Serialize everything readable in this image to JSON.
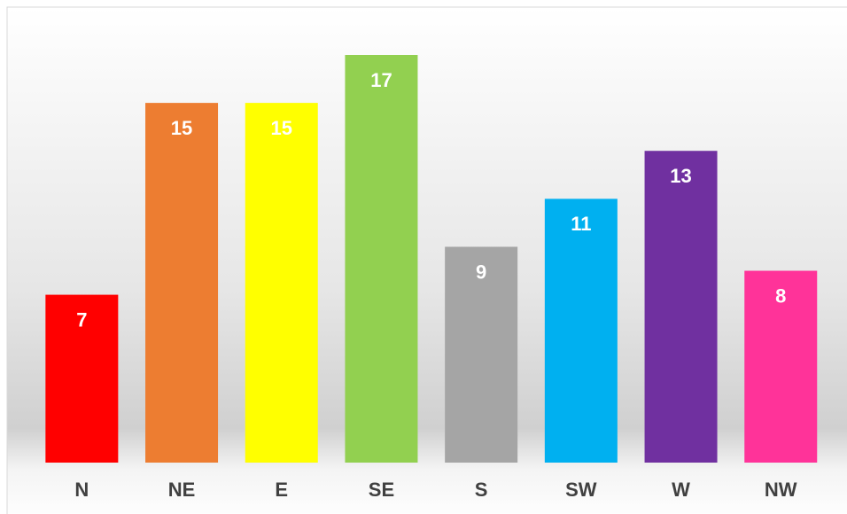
{
  "chart_data": {
    "type": "bar",
    "categories": [
      "N",
      "NE",
      "E",
      "SE",
      "S",
      "SW",
      "W",
      "NW"
    ],
    "values": [
      7,
      15,
      15,
      17,
      9,
      11,
      13,
      8
    ],
    "colors": [
      "#ff0000",
      "#ed7d31",
      "#ffff00",
      "#92d050",
      "#a5a5a5",
      "#00b0f0",
      "#7030a0",
      "#ff3399"
    ]
  }
}
